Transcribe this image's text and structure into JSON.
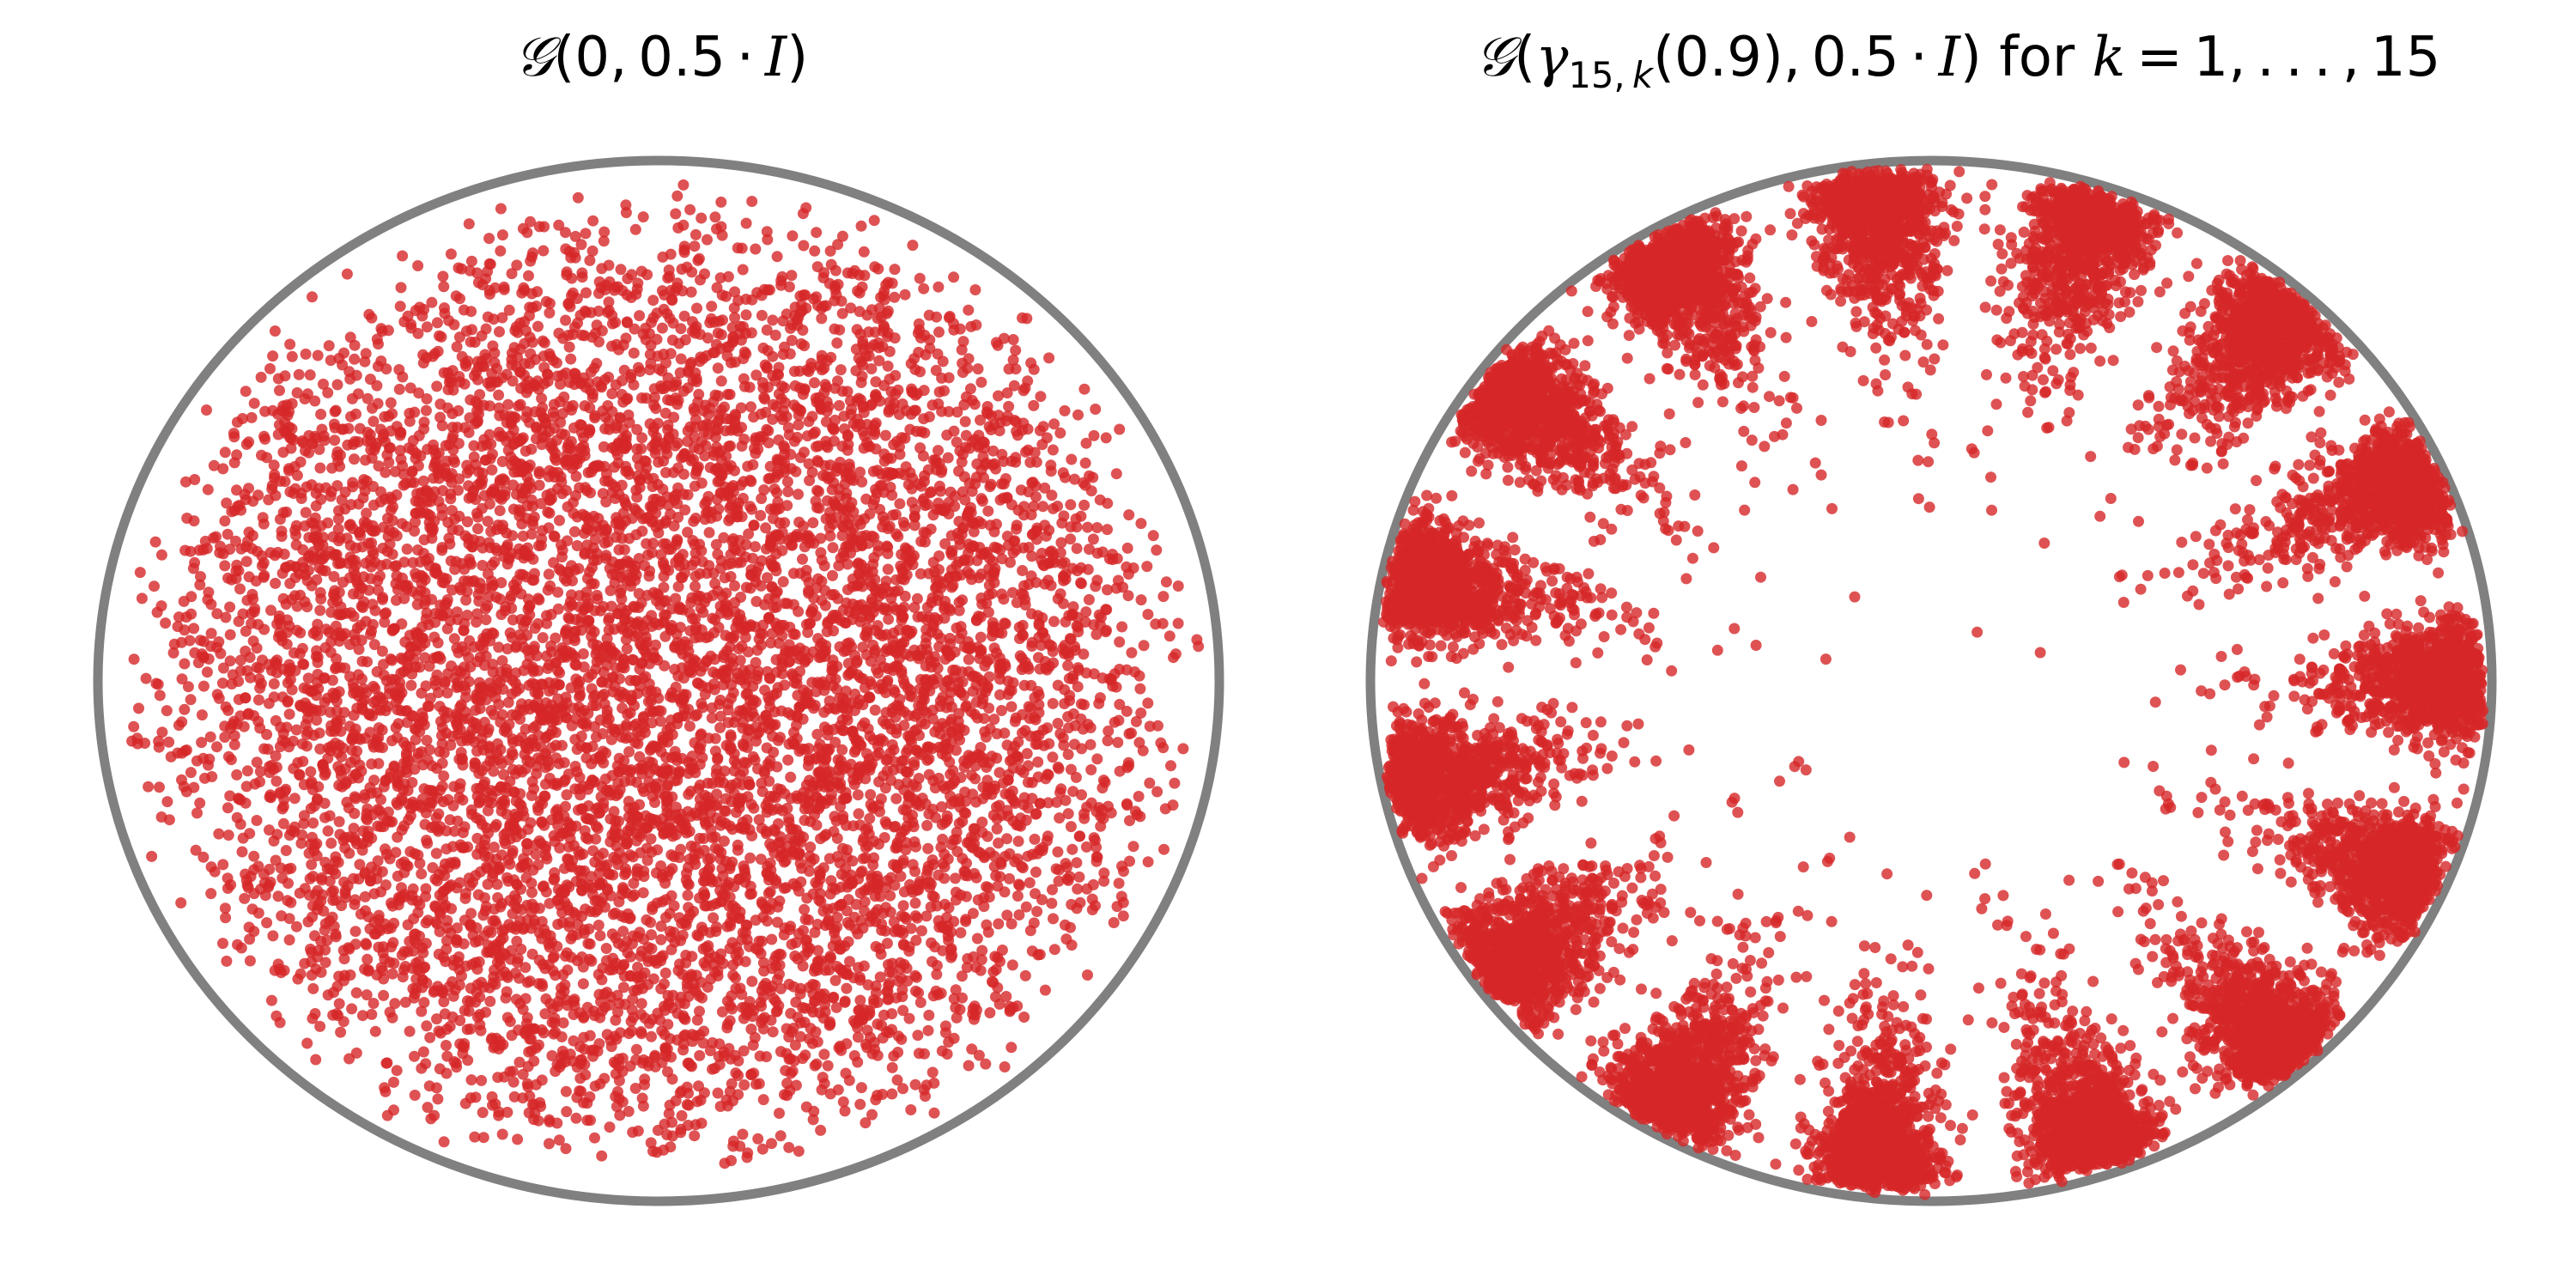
{
  "chart_data": [
    {
      "type": "scatter",
      "title": "𝒢(0, 0.5 · I)",
      "xlabel": "",
      "ylabel": "",
      "axes_visible": false,
      "domain": "poincare-disk",
      "boundary_color": "#808080",
      "point_color": "#d62728",
      "point_alpha": 0.8,
      "description": "Samples from a hyperbolic wrapped Gaussian centered at origin",
      "distribution": {
        "mean": [
          0,
          0
        ],
        "covariance_scale": 0.5,
        "num_points_approx": 8000
      }
    },
    {
      "type": "scatter",
      "title": "𝒢(γ15,k(0.9), 0.5 · I) for k = 1, . . . , 15",
      "xlabel": "",
      "ylabel": "",
      "axes_visible": false,
      "domain": "poincare-disk",
      "boundary_color": "#808080",
      "point_color": "#d62728",
      "point_alpha": 0.8,
      "description": "Mixture of 15 wrapped Gaussians placed at radius 0.9 around the disk",
      "distribution": {
        "num_components": 15,
        "center_radius": 0.9,
        "covariance_scale": 0.5,
        "num_points_approx": 15000
      }
    }
  ]
}
